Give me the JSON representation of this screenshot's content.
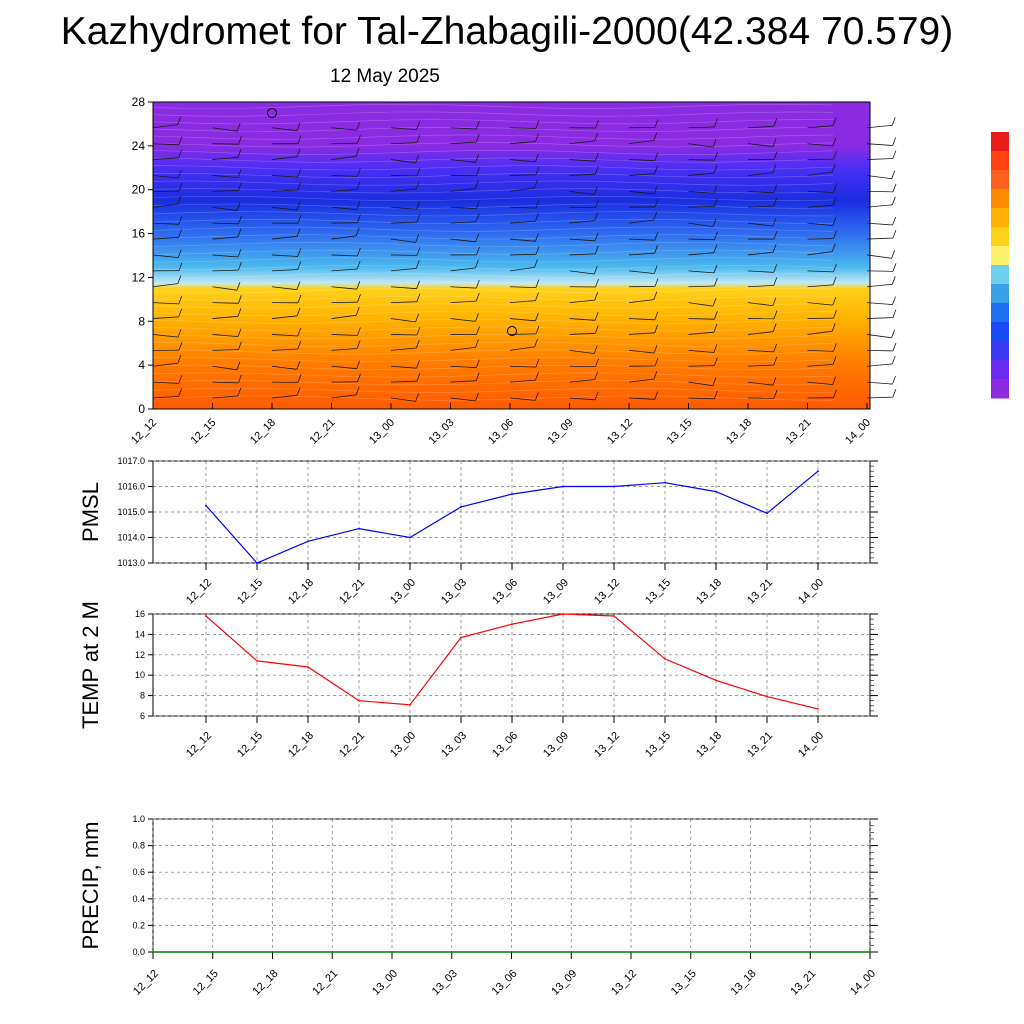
{
  "title": "Kazhydromet for Tal-Zhabagili-2000(42.384 70.579)",
  "subtitle": "12 May 2025",
  "time_labels": [
    "12_12",
    "12_15",
    "12_18",
    "12_21",
    "13_00",
    "13_03",
    "13_06",
    "13_09",
    "13_12",
    "13_15",
    "13_18",
    "13_21",
    "14_00"
  ],
  "colors": {
    "pmsl": "#0000ff",
    "temp": "#ff0000",
    "precip": "#008000",
    "grid": "#777777"
  },
  "chart_data": [
    {
      "type": "heatmap",
      "y_ticks": [
        "0",
        "4",
        "8",
        "12",
        "16",
        "20",
        "24",
        "28"
      ],
      "ylim": [
        0,
        28
      ],
      "x": [
        "12_12",
        "12_15",
        "12_18",
        "12_21",
        "13_00",
        "13_03",
        "13_06",
        "13_09",
        "13_12",
        "13_15",
        "13_18",
        "13_21",
        "14_00"
      ],
      "colorbar": [
        "#8a2be2",
        "#6a2af0",
        "#3a3af5",
        "#1a4af5",
        "#1f6ff0",
        "#3aa0e8",
        "#6fd0f0",
        "#fff06a",
        "#ffd21a",
        "#ffb000",
        "#ff8c00",
        "#ff6020",
        "#ff4010",
        "#e81c1c",
        "#ffffff"
      ],
      "layers_bottom_to_top": [
        {
          "level": 0,
          "color": "#ff5a00"
        },
        {
          "level": 4,
          "color": "#ff7a00"
        },
        {
          "level": 8,
          "color": "#ffb000"
        },
        {
          "level": 11,
          "color": "#ffd21a"
        },
        {
          "level": 11.5,
          "color": "#bfe8f5"
        },
        {
          "level": 13,
          "color": "#4ab8ee"
        },
        {
          "level": 16,
          "color": "#2f6cf0"
        },
        {
          "level": 19,
          "color": "#1a2ee0"
        },
        {
          "level": 22,
          "color": "#4a2ff5"
        },
        {
          "level": 24,
          "color": "#8a2be2"
        }
      ]
    },
    {
      "type": "line",
      "ylabel": "PMSL",
      "ylim": [
        1013.0,
        1017.0
      ],
      "y_ticks": [
        "1013.0",
        "1014.0",
        "1015.0",
        "1016.0",
        "1017.0"
      ],
      "x": [
        "12_12",
        "12_15",
        "12_18",
        "12_21",
        "13_00",
        "13_03",
        "13_06",
        "13_09",
        "13_12",
        "13_15",
        "13_18",
        "13_21",
        "14_00"
      ],
      "values": [
        1015.25,
        1013.0,
        1013.85,
        1014.35,
        1014.0,
        1015.2,
        1015.7,
        1016.0,
        1016.0,
        1016.15,
        1015.8,
        1014.95,
        1016.6
      ]
    },
    {
      "type": "line",
      "ylabel": "TEMP at 2 M",
      "ylim": [
        6,
        16
      ],
      "y_ticks": [
        "6",
        "8",
        "10",
        "12",
        "14",
        "16"
      ],
      "x": [
        "12_12",
        "12_15",
        "12_18",
        "12_21",
        "13_00",
        "13_03",
        "13_06",
        "13_09",
        "13_12",
        "13_15",
        "13_18",
        "13_21",
        "14_00"
      ],
      "values": [
        15.8,
        11.4,
        10.8,
        7.5,
        7.1,
        13.7,
        15.0,
        16.0,
        15.8,
        11.6,
        9.5,
        7.9,
        6.7
      ]
    },
    {
      "type": "line",
      "ylabel": "PRECIP, mm",
      "ylim": [
        0.0,
        1.0
      ],
      "y_ticks": [
        "0.0",
        "0.2",
        "0.4",
        "0.6",
        "0.8",
        "1.0"
      ],
      "x": [
        "12_12",
        "12_15",
        "12_18",
        "12_21",
        "13_00",
        "13_03",
        "13_06",
        "13_09",
        "13_12",
        "13_15",
        "13_18",
        "13_21",
        "14_00"
      ],
      "values": [
        0,
        0,
        0,
        0,
        0,
        0,
        0,
        0,
        0,
        0,
        0,
        0,
        0
      ]
    }
  ]
}
